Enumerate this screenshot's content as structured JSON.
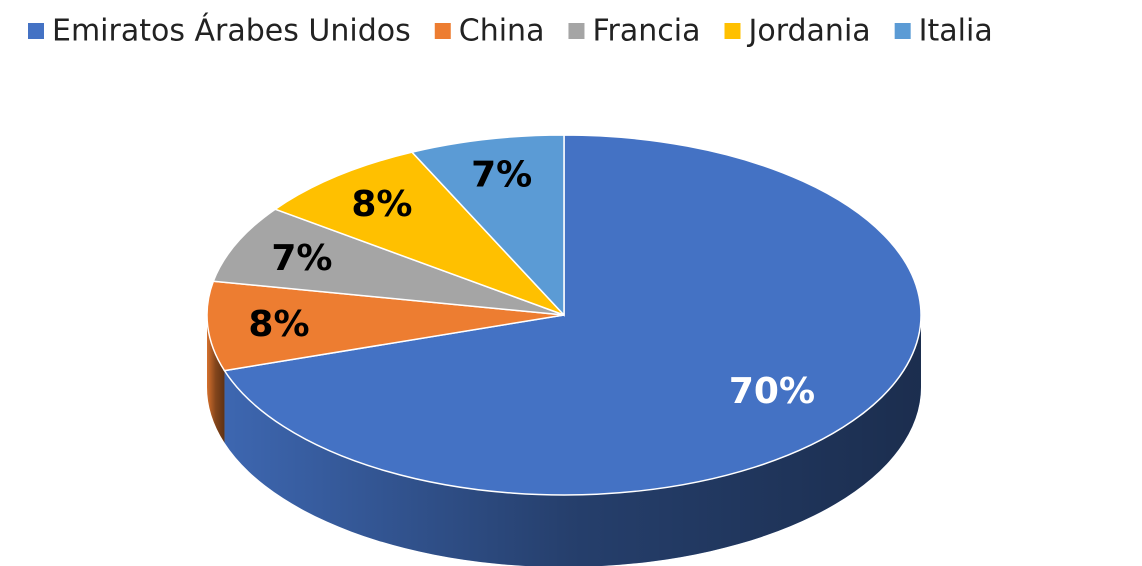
{
  "chart_data": {
    "type": "pie",
    "categories": [
      "Emiratos Árabes Unidos",
      "China",
      "Francia",
      "Jordania",
      "Italia"
    ],
    "values": [
      70,
      8,
      7,
      8,
      7
    ],
    "value_labels": [
      "70%",
      "8%",
      "7%",
      "8%",
      "7%"
    ],
    "colors": [
      "#4472c4",
      "#ed7d31",
      "#a5a5a5",
      "#ffc000",
      "#5b9bd5"
    ],
    "legend": "top"
  }
}
